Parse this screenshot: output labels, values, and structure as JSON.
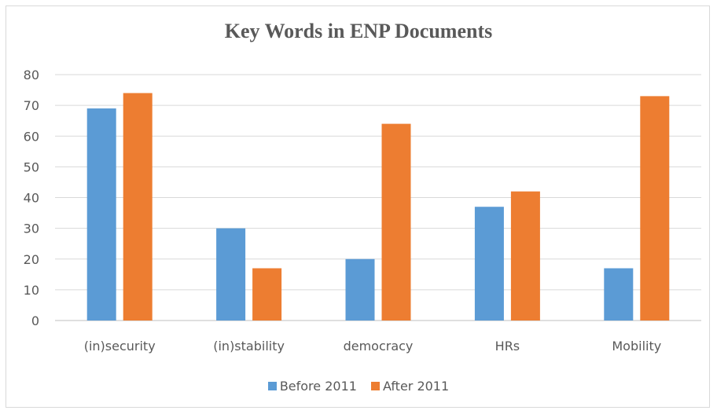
{
  "chart_data": {
    "type": "bar",
    "title": "Key Words in ENP Documents",
    "categories": [
      "(in)security",
      "(in)stability",
      "democracy",
      "HRs",
      "Mobility"
    ],
    "series": [
      {
        "name": "Before 2011",
        "values": [
          69,
          30,
          20,
          37,
          17
        ],
        "color": "#5b9bd5"
      },
      {
        "name": "After 2011",
        "values": [
          74,
          17,
          64,
          42,
          73
        ],
        "color": "#ed7d31"
      }
    ],
    "ylim": [
      0,
      80
    ],
    "yticks": [
      0,
      10,
      20,
      30,
      40,
      50,
      60,
      70,
      80
    ],
    "grid": true,
    "legend_position": "bottom",
    "xlabel": "",
    "ylabel": ""
  }
}
